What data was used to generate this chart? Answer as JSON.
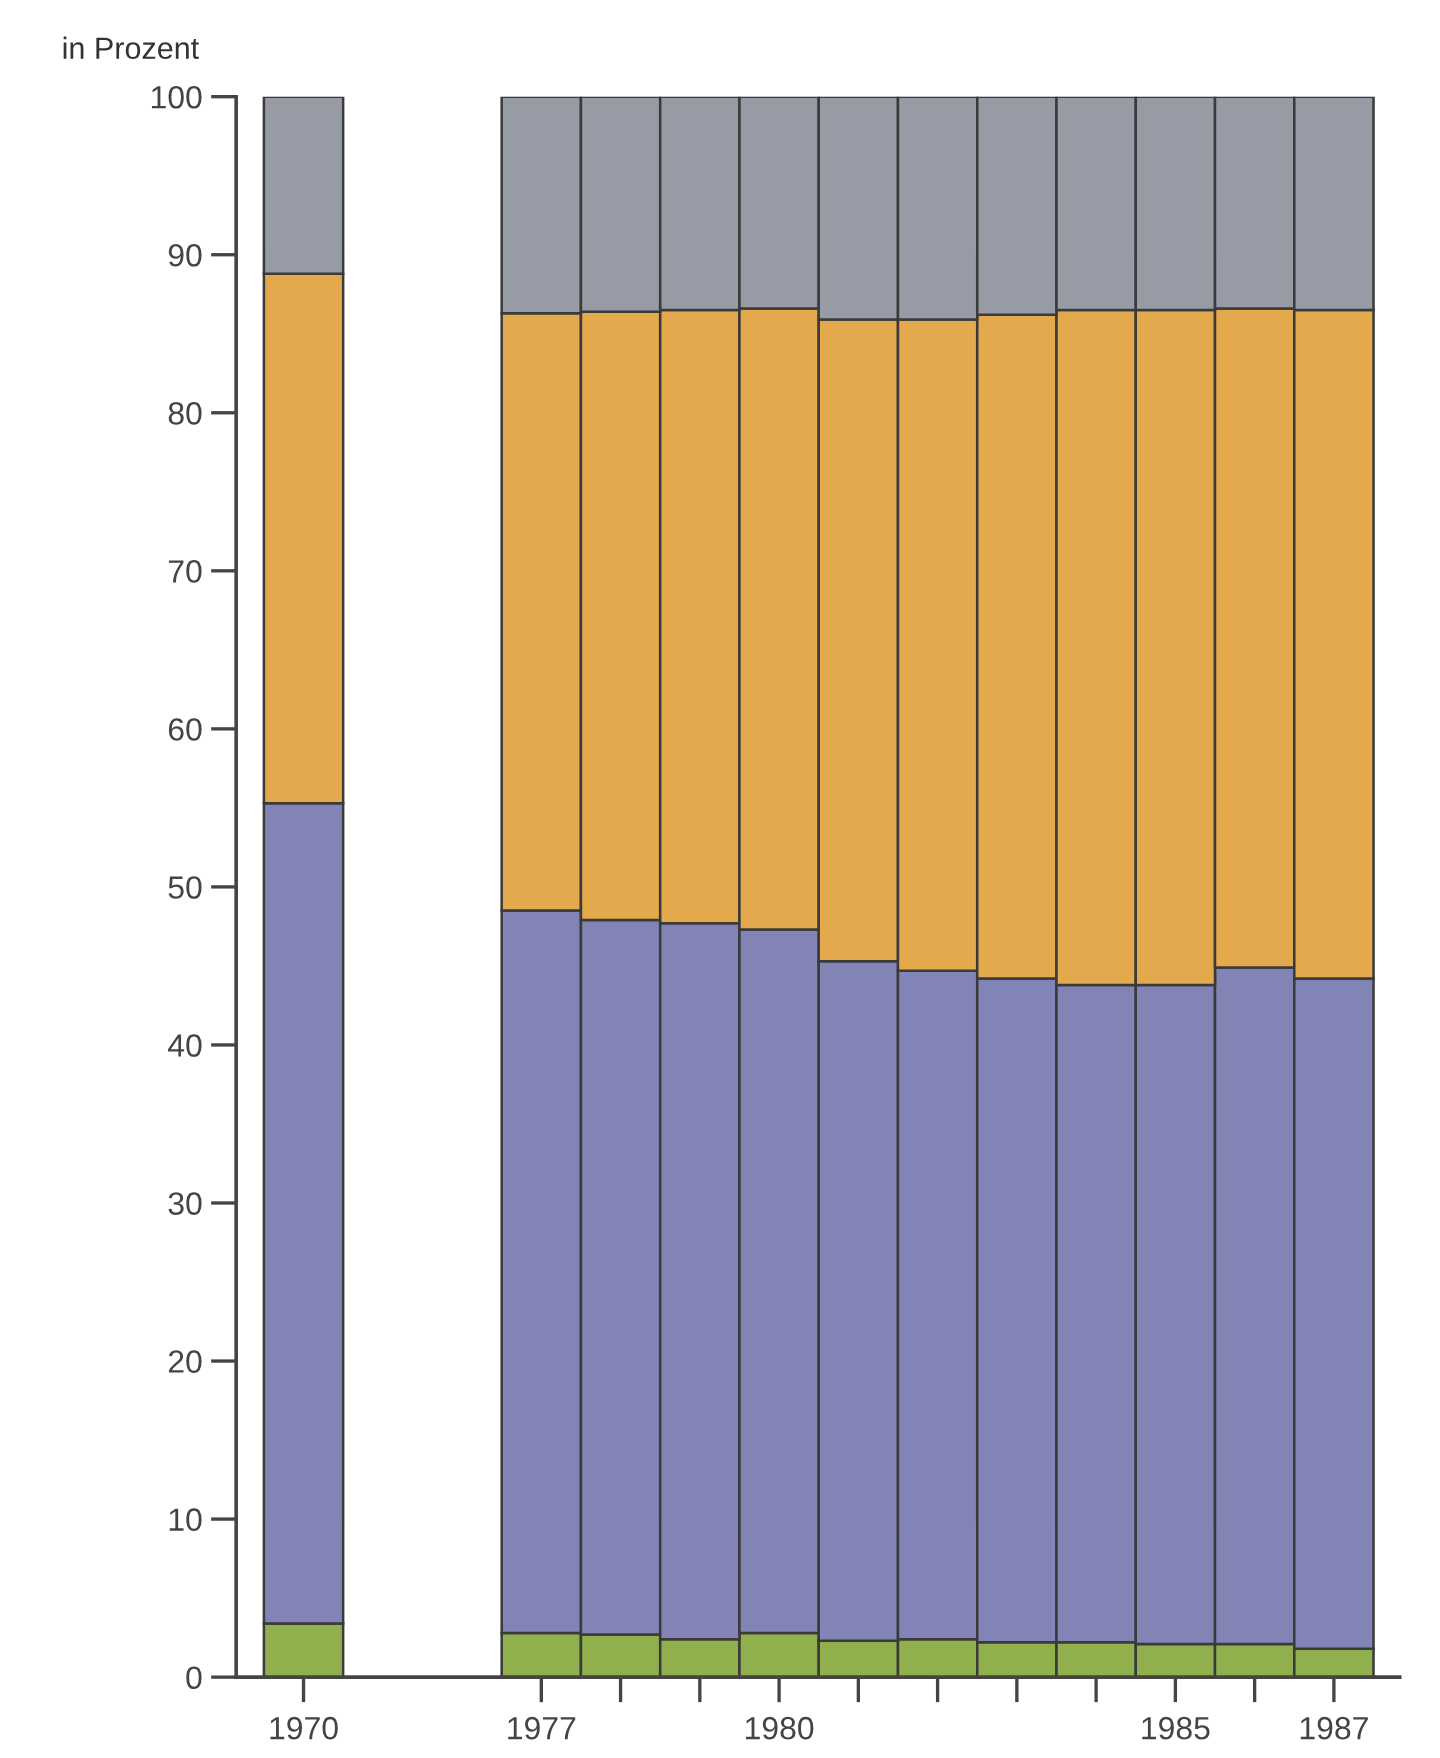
{
  "chart_data": {
    "type": "bar",
    "stacked": true,
    "ylabel": "in Prozent",
    "categories": [
      "1970",
      null,
      null,
      "1977",
      null,
      null,
      "1980",
      null,
      null,
      null,
      null,
      "1985",
      null,
      "1987"
    ],
    "series": [
      {
        "color": "#8fb04c",
        "values": [
          3.4,
          null,
          null,
          2.8,
          2.7,
          2.4,
          2.8,
          2.3,
          2.4,
          2.2,
          2.2,
          2.1,
          2.1,
          1.8
        ]
      },
      {
        "color": "#8384b6",
        "values": [
          51.9,
          null,
          null,
          45.7,
          45.2,
          45.3,
          44.5,
          43.0,
          42.3,
          42.0,
          41.6,
          41.7,
          42.8,
          42.4
        ]
      },
      {
        "color": "#e4a94c",
        "values": [
          33.5,
          null,
          null,
          37.8,
          38.5,
          38.8,
          39.3,
          40.6,
          41.2,
          42.0,
          42.7,
          42.7,
          41.7,
          42.3
        ]
      },
      {
        "color": "#979ba6",
        "values": [
          11.2,
          null,
          null,
          13.7,
          13.6,
          13.5,
          13.4,
          14.1,
          14.1,
          13.8,
          13.5,
          13.5,
          13.4,
          13.5
        ]
      }
    ],
    "ylim": [
      0,
      100
    ],
    "yticks": [
      0,
      10,
      20,
      30,
      40,
      50,
      60,
      70,
      80,
      90,
      100
    ],
    "grid": false,
    "legend": false
  }
}
